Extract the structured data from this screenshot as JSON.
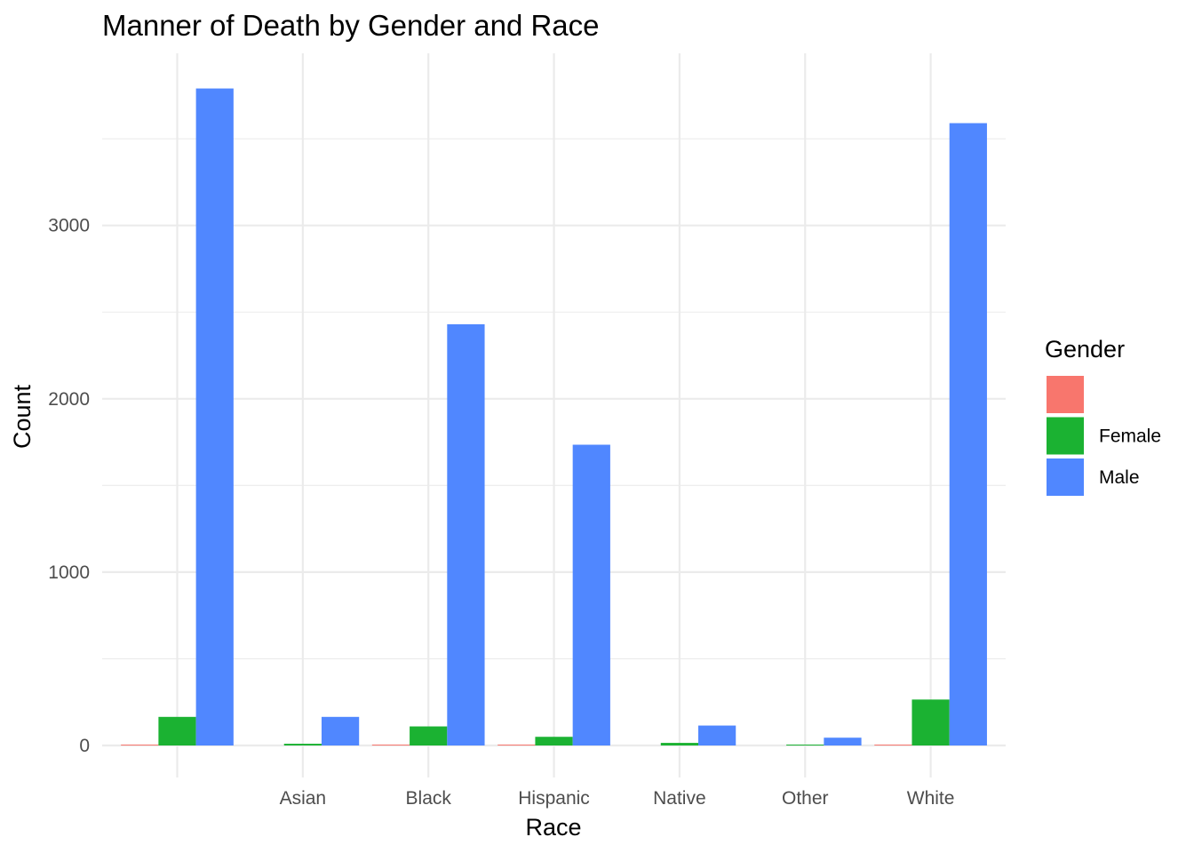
{
  "chart_data": {
    "type": "bar",
    "title": "Manner of Death by Gender and Race",
    "xlabel": "Race",
    "ylabel": "Count",
    "categories": [
      "",
      "Asian",
      "Black",
      "Hispanic",
      "Native",
      "Other",
      "White"
    ],
    "series": [
      {
        "name": "",
        "color": "#F8766D",
        "values": [
          5,
          0,
          2,
          2,
          0,
          0,
          3
        ]
      },
      {
        "name": "Female",
        "color": "#1BB232",
        "values": [
          165,
          10,
          110,
          50,
          15,
          5,
          265
        ]
      },
      {
        "name": "Male",
        "color": "#5087FF",
        "values": [
          3790,
          165,
          2430,
          1735,
          115,
          45,
          3590
        ]
      }
    ],
    "ylim": [
      -170,
      3990
    ],
    "yticks": [
      0,
      1000,
      2000,
      3000
    ],
    "grid": true,
    "legend": {
      "title": "Gender",
      "position": "right"
    }
  }
}
